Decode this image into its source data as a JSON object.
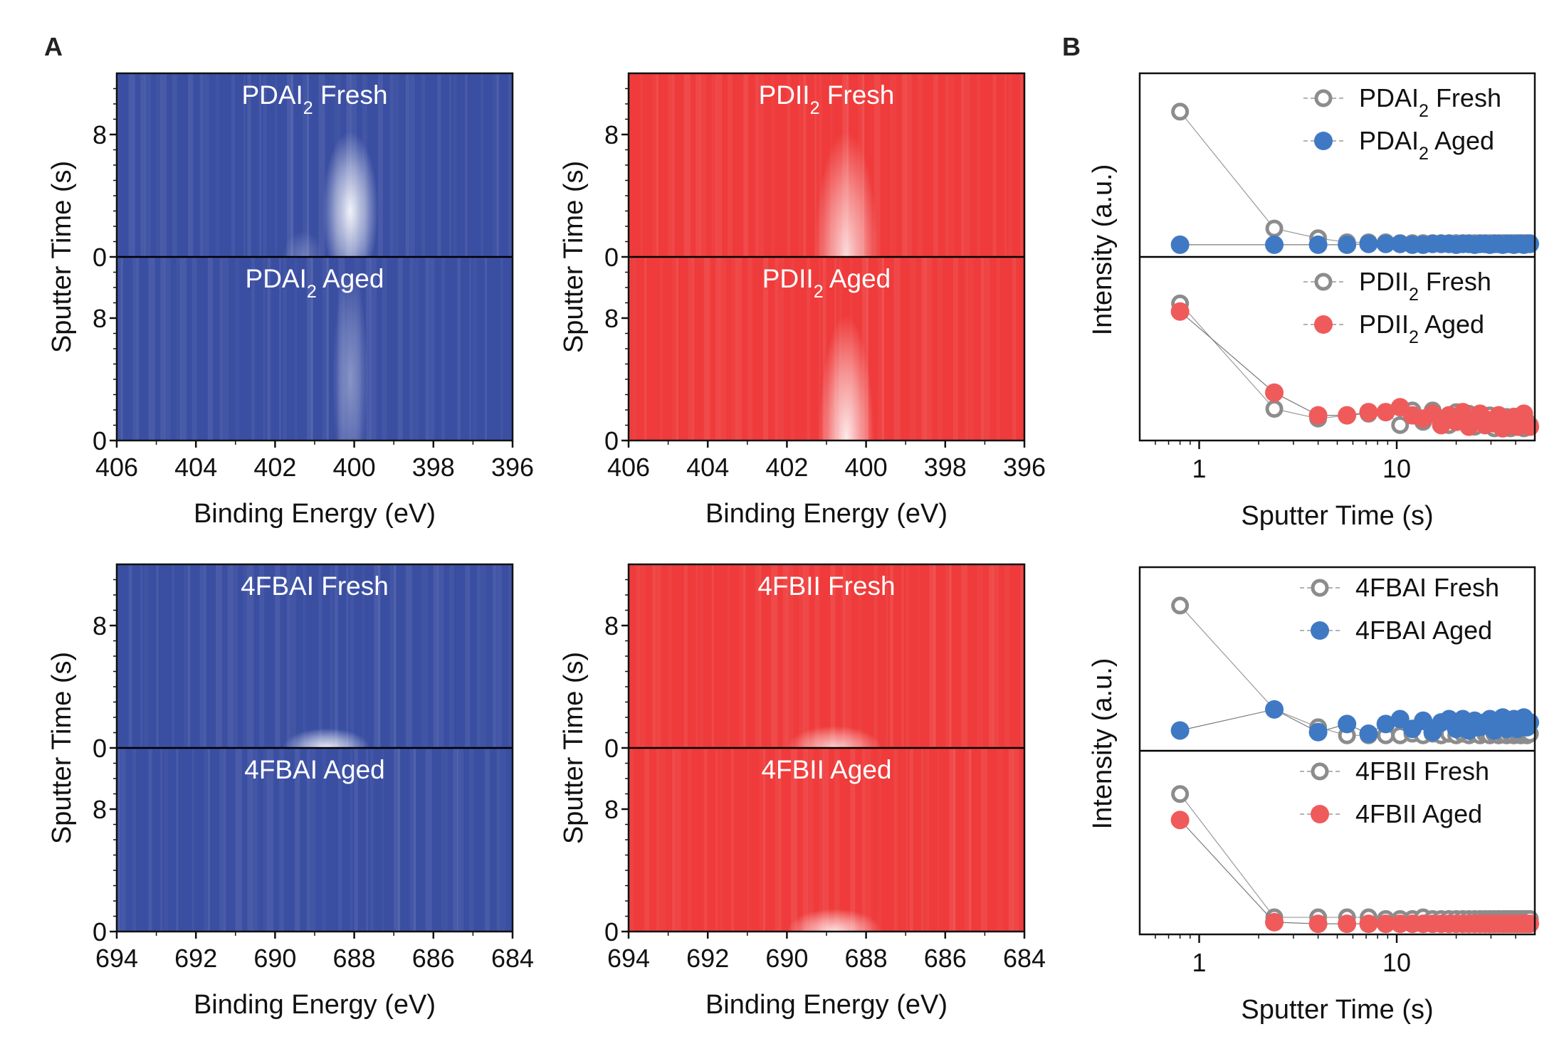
{
  "panel_labels": {
    "a": "A",
    "b": "B"
  },
  "colors": {
    "blue_base": "#3b4fa2",
    "red_base": "#ef3b3b",
    "fresh_marker": "#8c8c8c",
    "aged_blue": "#3f79c4",
    "aged_red": "#ef5b5b"
  },
  "chart_data": [
    {
      "type": "heatmap",
      "id": "pdai2",
      "color": "blue",
      "xlabel": "Binding Energy (eV)",
      "ylabel": "Sputter Time (s)",
      "xlim": [
        406,
        396
      ],
      "x_ticks": [
        "406",
        "404",
        "402",
        "400",
        "398",
        "396"
      ],
      "y_ticks": [
        "0",
        "8"
      ],
      "ylim": [
        0,
        12
      ],
      "subpanels": [
        {
          "label_prefix": "PDAI",
          "label_sub": "2",
          "label_suffix": " Fresh",
          "peaks": [
            {
              "x": 400.1,
              "width": 0.7,
              "amp": 0.92,
              "y_center": 3,
              "y_height": 10
            },
            {
              "x": 401.3,
              "width": 0.5,
              "amp": 0.25,
              "y_center": 0,
              "y_height": 3
            }
          ]
        },
        {
          "label_prefix": "PDAI",
          "label_sub": "2",
          "label_suffix": " Aged",
          "peaks": [
            {
              "x": 400.1,
              "width": 0.45,
              "amp": 0.4,
              "y_center": 4,
              "y_height": 14
            }
          ]
        }
      ]
    },
    {
      "type": "heatmap",
      "id": "pdii2",
      "color": "red",
      "xlabel": "Binding Energy (eV)",
      "ylabel": "Sputter Time (s)",
      "xlim": [
        406,
        396
      ],
      "x_ticks": [
        "406",
        "404",
        "402",
        "400",
        "398",
        "396"
      ],
      "y_ticks": [
        "0",
        "8"
      ],
      "ylim": [
        0,
        12
      ],
      "subpanels": [
        {
          "label_prefix": "PDII",
          "label_sub": "2",
          "label_suffix": " Fresh",
          "peaks": [
            {
              "x": 400.5,
              "width": 0.8,
              "amp": 0.8,
              "y_center": 0,
              "y_height": 16
            }
          ]
        },
        {
          "label_prefix": "PDII",
          "label_sub": "2",
          "label_suffix": " Aged",
          "peaks": [
            {
              "x": 400.5,
              "width": 0.7,
              "amp": 0.9,
              "y_center": 0,
              "y_height": 16
            }
          ]
        }
      ]
    },
    {
      "type": "heatmap",
      "id": "4fbai",
      "color": "blue",
      "xlabel": "Binding Energy (eV)",
      "ylabel": "Sputter Time (s)",
      "xlim": [
        694,
        684
      ],
      "x_ticks": [
        "694",
        "692",
        "690",
        "688",
        "686",
        "684"
      ],
      "y_ticks": [
        "0",
        "8"
      ],
      "ylim": [
        0,
        12
      ],
      "subpanels": [
        {
          "label_prefix": "4FBAI",
          "label_sub": "",
          "label_suffix": " Fresh",
          "peaks": [
            {
              "x": 688.7,
              "width": 1.1,
              "amp": 0.9,
              "y_center": 0,
              "y_height": 2.2
            }
          ]
        },
        {
          "label_prefix": "4FBAI",
          "label_sub": "",
          "label_suffix": " Aged",
          "peaks": []
        }
      ]
    },
    {
      "type": "heatmap",
      "id": "4fbii",
      "color": "red",
      "xlabel": "Binding Energy (eV)",
      "ylabel": "Sputter Time (s)",
      "xlim": [
        694,
        684
      ],
      "x_ticks": [
        "694",
        "692",
        "690",
        "688",
        "686",
        "684"
      ],
      "y_ticks": [
        "0",
        "8"
      ],
      "ylim": [
        0,
        12
      ],
      "subpanels": [
        {
          "label_prefix": "4FBII",
          "label_sub": "",
          "label_suffix": " Fresh",
          "peaks": [
            {
              "x": 688.8,
              "width": 1.2,
              "amp": 0.75,
              "y_center": 0,
              "y_height": 2.5
            }
          ]
        },
        {
          "label_prefix": "4FBII",
          "label_sub": "",
          "label_suffix": " Aged",
          "peaks": [
            {
              "x": 688.8,
              "width": 1.2,
              "amp": 0.85,
              "y_center": 0,
              "y_height": 2.6
            }
          ]
        }
      ]
    },
    {
      "type": "scatter",
      "id": "b_top",
      "xscale": "log",
      "xlim": [
        0.5,
        50
      ],
      "xlabel": "Sputter Time (s)",
      "ylabel": "Intensity (a.u.)",
      "x_ticks": [
        "1",
        "10"
      ],
      "x": [
        0.8,
        2.4,
        4,
        5.6,
        7.2,
        8.8,
        10.4,
        12,
        13.6,
        15.2,
        16.8,
        18.4,
        20,
        21.6,
        23.2,
        24.8,
        26.4,
        28,
        29.6,
        31.2,
        32.8,
        34.4,
        36,
        37.6,
        39.2,
        40.8,
        42.4,
        44,
        45.6,
        47.2
      ],
      "subpanels": [
        {
          "series": [
            {
              "name_prefix": "PDAI",
              "name_sub": "2",
              "name_suffix": " Fresh",
              "marker": "open",
              "values": [
                8.6,
                1.4,
                0.8,
                0.55,
                0.55,
                0.55,
                0.5,
                0.5,
                0.5,
                0.5,
                0.5,
                0.5,
                0.5,
                0.5,
                0.5,
                0.5,
                0.5,
                0.5,
                0.5,
                0.5,
                0.5,
                0.5,
                0.5,
                0.5,
                0.5,
                0.5,
                0.5,
                0.5,
                0.5,
                0.5
              ]
            },
            {
              "name_prefix": "PDAI",
              "name_sub": "2",
              "name_suffix": " Aged",
              "marker": "filled",
              "values": [
                0.4,
                0.4,
                0.4,
                0.4,
                0.45,
                0.45,
                0.45,
                0.4,
                0.4,
                0.45,
                0.45,
                0.45,
                0.4,
                0.45,
                0.45,
                0.4,
                0.45,
                0.45,
                0.4,
                0.45,
                0.45,
                0.4,
                0.45,
                0.45,
                0.4,
                0.45,
                0.45,
                0.4,
                0.45,
                0.45
              ]
            }
          ]
        },
        {
          "series": [
            {
              "name_prefix": "PDII",
              "name_sub": "2",
              "name_suffix": " Fresh",
              "marker": "open",
              "values": [
                8.1,
                1.6,
                1.0,
                1.2,
                1.3,
                1.4,
                0.6,
                1.5,
                0.8,
                1.5,
                1.0,
                0.6,
                1.4,
                0.8,
                1.3,
                0.5,
                1.0,
                0.7,
                1.2,
                0.4,
                0.9,
                0.6,
                1.1,
                0.4,
                0.8,
                0.6,
                1.0,
                0.4,
                0.8,
                0.6
              ]
            },
            {
              "name_prefix": "PDII",
              "name_sub": "2",
              "name_suffix": " Aged",
              "marker": "filled",
              "values": [
                7.6,
                2.6,
                1.2,
                1.2,
                1.4,
                1.4,
                1.7,
                1.2,
                1.0,
                1.3,
                0.6,
                1.2,
                0.8,
                1.4,
                0.5,
                1.0,
                1.3,
                0.6,
                0.9,
                0.7,
                1.2,
                0.4,
                0.8,
                0.6,
                1.1,
                0.5,
                0.8,
                1.3,
                0.6,
                0.5
              ]
            }
          ]
        }
      ]
    },
    {
      "type": "scatter",
      "id": "b_bottom",
      "xscale": "log",
      "xlim": [
        0.5,
        50
      ],
      "xlabel": "Sputter Time (s)",
      "ylabel": "Intensity (a.u.)",
      "x_ticks": [
        "1",
        "10"
      ],
      "x": [
        0.8,
        2.4,
        4,
        5.6,
        7.2,
        8.8,
        10.4,
        12,
        13.6,
        15.2,
        16.8,
        18.4,
        20,
        21.6,
        23.2,
        24.8,
        26.4,
        28,
        29.6,
        31.2,
        32.8,
        34.4,
        36,
        37.6,
        39.2,
        40.8,
        42.4,
        44,
        45.6,
        47.2
      ],
      "subpanels": [
        {
          "series": [
            {
              "name_prefix": "4FBAI",
              "name_sub": "",
              "name_suffix": " Fresh",
              "marker": "open",
              "values": [
                8.6,
                2.2,
                1.1,
                0.6,
                0.6,
                0.6,
                0.6,
                0.7,
                0.6,
                0.7,
                0.6,
                0.7,
                0.6,
                0.7,
                0.6,
                0.7,
                0.6,
                0.7,
                0.6,
                0.7,
                0.6,
                0.7,
                0.6,
                0.7,
                0.6,
                0.7,
                0.6,
                0.7,
                0.6,
                0.7
              ]
            },
            {
              "name_prefix": "4FBAI",
              "name_sub": "",
              "name_suffix": " Aged",
              "marker": "filled",
              "values": [
                0.9,
                2.2,
                0.8,
                1.3,
                0.7,
                1.3,
                1.6,
                1.0,
                1.5,
                0.8,
                1.4,
                1.6,
                1.0,
                1.6,
                0.9,
                1.5,
                1.1,
                1.4,
                1.6,
                0.9,
                1.5,
                1.7,
                1.0,
                1.4,
                1.6,
                1.0,
                1.5,
                1.7,
                1.1,
                1.4
              ]
            }
          ]
        },
        {
          "series": [
            {
              "name_prefix": "4FBII",
              "name_sub": "",
              "name_suffix": " Fresh",
              "marker": "open",
              "values": [
                8.3,
                0.7,
                0.7,
                0.7,
                0.7,
                0.6,
                0.6,
                0.6,
                0.7,
                0.6,
                0.6,
                0.6,
                0.6,
                0.6,
                0.6,
                0.6,
                0.6,
                0.6,
                0.6,
                0.6,
                0.6,
                0.6,
                0.6,
                0.6,
                0.6,
                0.6,
                0.6,
                0.6,
                0.6,
                0.6
              ]
            },
            {
              "name_prefix": "4FBII",
              "name_sub": "",
              "name_suffix": " Aged",
              "marker": "filled",
              "values": [
                6.7,
                0.4,
                0.3,
                0.3,
                0.3,
                0.3,
                0.3,
                0.3,
                0.3,
                0.3,
                0.3,
                0.3,
                0.3,
                0.3,
                0.3,
                0.3,
                0.3,
                0.3,
                0.3,
                0.3,
                0.3,
                0.3,
                0.3,
                0.3,
                0.3,
                0.3,
                0.3,
                0.3,
                0.3,
                0.3
              ]
            }
          ]
        }
      ]
    }
  ]
}
